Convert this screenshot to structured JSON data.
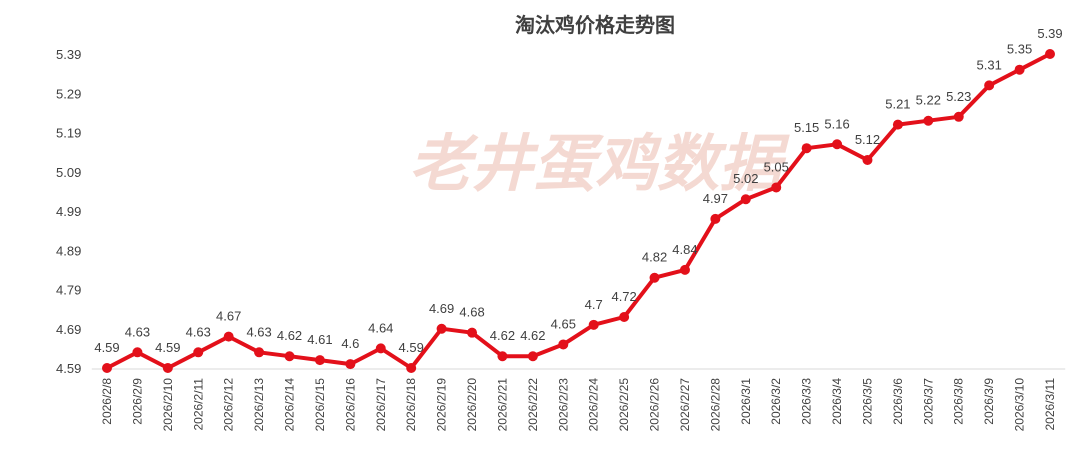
{
  "chart_data": {
    "type": "line",
    "title": "淘汰鸡价格走势图",
    "watermark": "老井蛋鸡数据",
    "xlabel": "",
    "ylabel": "",
    "ylim": [
      4.59,
      5.39
    ],
    "yticks": [
      "4.59",
      "4.69",
      "4.79",
      "4.89",
      "4.99",
      "5.09",
      "5.19",
      "5.29",
      "5.39"
    ],
    "grid": false,
    "legend": "none",
    "line_color": "#e3101a",
    "categories": [
      "2026/2/8",
      "2026/2/9",
      "2026/2/10",
      "2026/2/11",
      "2026/2/12",
      "2026/2/13",
      "2026/2/14",
      "2026/2/15",
      "2026/2/16",
      "2026/2/17",
      "2026/2/18",
      "2026/2/19",
      "2026/2/20",
      "2026/2/21",
      "2026/2/22",
      "2026/2/23",
      "2026/2/24",
      "2026/2/25",
      "2026/2/26",
      "2026/2/27",
      "2026/2/28",
      "2026/3/1",
      "2026/3/2",
      "2026/3/3",
      "2026/3/4",
      "2026/3/5",
      "2026/3/6",
      "2026/3/7",
      "2026/3/8",
      "2026/3/9",
      "2026/3/10",
      "2026/3/11"
    ],
    "series": [
      {
        "values": [
          4.59,
          4.63,
          4.59,
          4.63,
          4.67,
          4.63,
          4.62,
          4.61,
          4.6,
          4.64,
          4.59,
          4.69,
          4.68,
          4.62,
          4.62,
          4.65,
          4.7,
          4.72,
          4.82,
          4.84,
          4.97,
          5.02,
          5.05,
          5.15,
          5.16,
          5.12,
          5.21,
          5.22,
          5.23,
          5.31,
          5.35,
          5.39
        ],
        "labels": [
          "4.59",
          "4.63",
          "4.59",
          "4.63",
          "4.67",
          "4.63",
          "4.62",
          "4.61",
          "4.6",
          "4.64",
          "4.59",
          "4.69",
          "4.68",
          "4.62",
          "4.62",
          "4.65",
          "4.7",
          "4.72",
          "4.82",
          "4.84",
          "4.97",
          "5.02",
          "5.05",
          "5.15",
          "5.16",
          "5.12",
          "5.21",
          "5.22",
          "5.23",
          "5.31",
          "5.35",
          "5.39"
        ]
      }
    ]
  }
}
